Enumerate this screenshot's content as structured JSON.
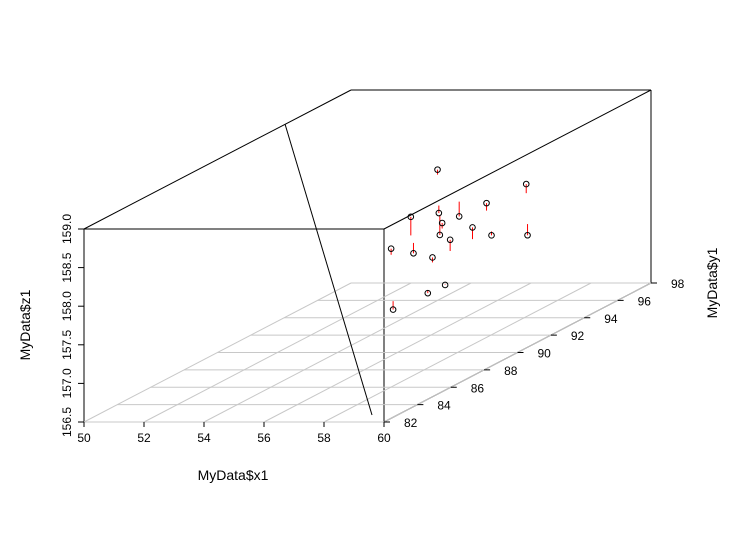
{
  "chart_data": {
    "type": "scatter3d",
    "x_axis": {
      "label": "MyData$x1",
      "range": [
        50,
        60
      ],
      "ticks": [
        "50",
        "52",
        "54",
        "56",
        "58",
        "60"
      ]
    },
    "y_axis": {
      "label": "MyData$y1",
      "range": [
        82,
        98
      ],
      "ticks": [
        "82",
        "84",
        "86",
        "88",
        "90",
        "92",
        "94",
        "96",
        "98"
      ]
    },
    "z_axis": {
      "label": "MyData$z1",
      "range": [
        156.5,
        159.0
      ],
      "ticks": [
        "156.5",
        "157.0",
        "157.5",
        "158.0",
        "158.5",
        "159.0"
      ]
    },
    "regression_line": {
      "color": "#000000"
    },
    "residual_color": "#ff0000",
    "grid": "floor",
    "points": [
      {
        "x": 56.5,
        "y": 91.5,
        "z": 158.7
      },
      {
        "x": 57.0,
        "y": 89.0,
        "z": 158.37
      },
      {
        "x": 57.1,
        "y": 90.5,
        "z": 158.25
      },
      {
        "x": 56.9,
        "y": 88.0,
        "z": 158.07
      },
      {
        "x": 57.2,
        "y": 88.8,
        "z": 157.92
      },
      {
        "x": 57.3,
        "y": 90.2,
        "z": 158.0
      },
      {
        "x": 57.5,
        "y": 91.0,
        "z": 158.15
      },
      {
        "x": 57.6,
        "y": 89.8,
        "z": 158.2
      },
      {
        "x": 58.0,
        "y": 88.5,
        "z": 157.9
      },
      {
        "x": 58.2,
        "y": 89.2,
        "z": 158.05
      },
      {
        "x": 58.5,
        "y": 90.0,
        "z": 158.12
      },
      {
        "x": 58.3,
        "y": 91.2,
        "z": 158.3
      },
      {
        "x": 58.8,
        "y": 90.6,
        "z": 157.95
      },
      {
        "x": 57.8,
        "y": 86.5,
        "z": 157.45
      },
      {
        "x": 58.4,
        "y": 87.5,
        "z": 157.55
      },
      {
        "x": 58.7,
        "y": 88.0,
        "z": 157.6
      },
      {
        "x": 59.5,
        "y": 91.5,
        "z": 157.85
      },
      {
        "x": 58.9,
        "y": 92.5,
        "z": 158.4
      }
    ]
  }
}
